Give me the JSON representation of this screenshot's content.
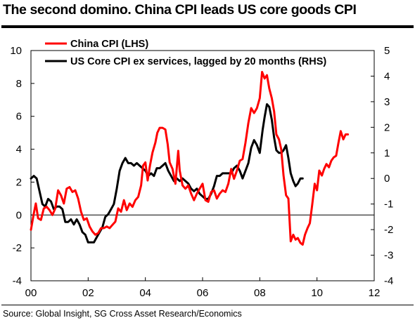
{
  "header": {
    "title": "The second domino.  China CPI leads US core goods CPI"
  },
  "footer": {
    "source": "Source: Global Insight, SG Cross Asset Research/Economics"
  },
  "chart_data": {
    "type": "line",
    "title": "The second domino.  China CPI leads US core goods CPI",
    "xlabel": "",
    "ylabel": "",
    "xlim": [
      2000,
      2012
    ],
    "ylim_left": [
      -4,
      10
    ],
    "ylim_right": [
      -4,
      5
    ],
    "x_tick_labels": [
      "00",
      "02",
      "04",
      "06",
      "08",
      "10",
      "12"
    ],
    "x_tick_values": [
      2000,
      2002,
      2004,
      2006,
      2008,
      2010,
      2012
    ],
    "y_left_ticks": [
      -4,
      -2,
      0,
      2,
      4,
      6,
      8,
      10
    ],
    "y_right_ticks": [
      -4,
      -3,
      -2,
      -1,
      0,
      1,
      2,
      3,
      4,
      5
    ],
    "grid": false,
    "legend": "top-left",
    "series": [
      {
        "name": "China CPI (LHS)",
        "color": "#ff0000",
        "axis": "left",
        "points": [
          [
            2000.0,
            -0.9
          ],
          [
            2000.1,
            0.1
          ],
          [
            2000.17,
            0.7
          ],
          [
            2000.25,
            -0.2
          ],
          [
            2000.35,
            -0.3
          ],
          [
            2000.45,
            0.4
          ],
          [
            2000.55,
            0.5
          ],
          [
            2000.65,
            0.3
          ],
          [
            2000.75,
            0.0
          ],
          [
            2000.85,
            0.4
          ],
          [
            2000.95,
            1.5
          ],
          [
            2001.05,
            1.2
          ],
          [
            2001.15,
            0.7
          ],
          [
            2001.25,
            1.6
          ],
          [
            2001.35,
            1.7
          ],
          [
            2001.45,
            1.4
          ],
          [
            2001.55,
            1.5
          ],
          [
            2001.65,
            1.0
          ],
          [
            2001.75,
            0.2
          ],
          [
            2001.85,
            -0.3
          ],
          [
            2001.95,
            -0.2
          ],
          [
            2002.05,
            -0.7
          ],
          [
            2002.15,
            -1.0
          ],
          [
            2002.25,
            -1.2
          ],
          [
            2002.35,
            -1.1
          ],
          [
            2002.45,
            -0.8
          ],
          [
            2002.55,
            -0.8
          ],
          [
            2002.65,
            -0.7
          ],
          [
            2002.75,
            -0.8
          ],
          [
            2002.85,
            -0.6
          ],
          [
            2002.95,
            -0.4
          ],
          [
            2003.05,
            0.4
          ],
          [
            2003.15,
            0.2
          ],
          [
            2003.25,
            0.9
          ],
          [
            2003.35,
            0.3
          ],
          [
            2003.45,
            0.7
          ],
          [
            2003.55,
            0.5
          ],
          [
            2003.65,
            0.9
          ],
          [
            2003.75,
            1.1
          ],
          [
            2003.85,
            1.8
          ],
          [
            2003.92,
            3.0
          ],
          [
            2004.0,
            3.2
          ],
          [
            2004.08,
            2.1
          ],
          [
            2004.16,
            3.0
          ],
          [
            2004.25,
            3.8
          ],
          [
            2004.35,
            4.4
          ],
          [
            2004.42,
            5.0
          ],
          [
            2004.5,
            5.3
          ],
          [
            2004.6,
            5.3
          ],
          [
            2004.7,
            5.2
          ],
          [
            2004.78,
            4.3
          ],
          [
            2004.85,
            3.2
          ],
          [
            2004.95,
            2.8
          ],
          [
            2005.05,
            1.9
          ],
          [
            2005.15,
            3.9
          ],
          [
            2005.2,
            2.7
          ],
          [
            2005.3,
            1.8
          ],
          [
            2005.4,
            1.6
          ],
          [
            2005.5,
            1.8
          ],
          [
            2005.6,
            1.3
          ],
          [
            2005.7,
            0.9
          ],
          [
            2005.8,
            1.3
          ],
          [
            2005.9,
            1.6
          ],
          [
            2006.0,
            1.9
          ],
          [
            2006.1,
            0.9
          ],
          [
            2006.2,
            0.8
          ],
          [
            2006.3,
            1.4
          ],
          [
            2006.4,
            1.5
          ],
          [
            2006.5,
            1.0
          ],
          [
            2006.6,
            1.3
          ],
          [
            2006.7,
            1.5
          ],
          [
            2006.8,
            1.4
          ],
          [
            2006.9,
            1.9
          ],
          [
            2007.0,
            2.8
          ],
          [
            2007.1,
            2.2
          ],
          [
            2007.2,
            2.7
          ],
          [
            2007.3,
            3.3
          ],
          [
            2007.4,
            3.4
          ],
          [
            2007.5,
            4.4
          ],
          [
            2007.6,
            5.6
          ],
          [
            2007.7,
            6.5
          ],
          [
            2007.8,
            6.2
          ],
          [
            2007.9,
            6.5
          ],
          [
            2008.0,
            7.1
          ],
          [
            2008.08,
            8.7
          ],
          [
            2008.17,
            8.3
          ],
          [
            2008.25,
            8.5
          ],
          [
            2008.33,
            7.7
          ],
          [
            2008.42,
            7.1
          ],
          [
            2008.5,
            6.3
          ],
          [
            2008.58,
            4.9
          ],
          [
            2008.67,
            4.6
          ],
          [
            2008.75,
            4.0
          ],
          [
            2008.83,
            2.4
          ],
          [
            2008.92,
            1.2
          ],
          [
            2009.0,
            1.0
          ],
          [
            2009.08,
            -1.6
          ],
          [
            2009.17,
            -1.2
          ],
          [
            2009.25,
            -1.5
          ],
          [
            2009.33,
            -1.4
          ],
          [
            2009.42,
            -1.7
          ],
          [
            2009.5,
            -1.8
          ],
          [
            2009.58,
            -1.2
          ],
          [
            2009.67,
            -0.8
          ],
          [
            2009.75,
            -0.5
          ],
          [
            2009.83,
            0.6
          ],
          [
            2009.92,
            1.9
          ],
          [
            2010.0,
            1.5
          ],
          [
            2010.08,
            2.7
          ],
          [
            2010.17,
            2.4
          ],
          [
            2010.25,
            2.8
          ],
          [
            2010.33,
            3.1
          ],
          [
            2010.42,
            2.9
          ],
          [
            2010.5,
            3.3
          ],
          [
            2010.58,
            3.5
          ],
          [
            2010.67,
            3.6
          ],
          [
            2010.75,
            4.4
          ],
          [
            2010.83,
            5.1
          ],
          [
            2010.92,
            4.6
          ],
          [
            2011.0,
            4.9
          ],
          [
            2011.08,
            4.9
          ]
        ]
      },
      {
        "name": "US Core CPI ex services,  lagged by 20 months (RHS)",
        "color": "#000000",
        "axis": "right",
        "points": [
          [
            2000.0,
            0.0
          ],
          [
            2000.1,
            0.1
          ],
          [
            2000.2,
            0.0
          ],
          [
            2000.3,
            -0.5
          ],
          [
            2000.4,
            -1.0
          ],
          [
            2000.5,
            -1.1
          ],
          [
            2000.6,
            -0.8
          ],
          [
            2000.7,
            -0.9
          ],
          [
            2000.8,
            -1.2
          ],
          [
            2000.9,
            -1.1
          ],
          [
            2001.0,
            -1.1
          ],
          [
            2001.1,
            -1.2
          ],
          [
            2001.2,
            -1.7
          ],
          [
            2001.3,
            -1.7
          ],
          [
            2001.4,
            -1.6
          ],
          [
            2001.5,
            -1.8
          ],
          [
            2001.6,
            -1.6
          ],
          [
            2001.7,
            -1.8
          ],
          [
            2001.8,
            -2.1
          ],
          [
            2001.9,
            -2.2
          ],
          [
            2002.0,
            -2.5
          ],
          [
            2002.1,
            -2.5
          ],
          [
            2002.2,
            -2.5
          ],
          [
            2002.3,
            -2.3
          ],
          [
            2002.4,
            -2.1
          ],
          [
            2002.5,
            -1.9
          ],
          [
            2002.6,
            -1.5
          ],
          [
            2002.7,
            -1.4
          ],
          [
            2002.8,
            -1.2
          ],
          [
            2002.9,
            -1.0
          ],
          [
            2003.0,
            -0.4
          ],
          [
            2003.1,
            0.3
          ],
          [
            2003.2,
            0.6
          ],
          [
            2003.3,
            0.8
          ],
          [
            2003.4,
            0.6
          ],
          [
            2003.5,
            0.6
          ],
          [
            2003.6,
            0.5
          ],
          [
            2003.7,
            0.6
          ],
          [
            2003.8,
            0.5
          ],
          [
            2003.9,
            0.4
          ],
          [
            2004.0,
            0.3
          ],
          [
            2004.1,
            0.1
          ],
          [
            2004.2,
            0.2
          ],
          [
            2004.3,
            0.1
          ],
          [
            2004.4,
            0.4
          ],
          [
            2004.5,
            0.4
          ],
          [
            2004.6,
            0.5
          ],
          [
            2004.7,
            0.6
          ],
          [
            2004.8,
            0.3
          ],
          [
            2004.9,
            0.1
          ],
          [
            2005.0,
            -0.1
          ],
          [
            2005.1,
            0.0
          ],
          [
            2005.2,
            -0.1
          ],
          [
            2005.3,
            0.0
          ],
          [
            2005.4,
            -0.1
          ],
          [
            2005.5,
            -0.2
          ],
          [
            2005.6,
            -0.4
          ],
          [
            2005.7,
            -0.5
          ],
          [
            2005.8,
            -0.4
          ],
          [
            2005.9,
            -0.6
          ],
          [
            2006.0,
            -0.7
          ],
          [
            2006.1,
            -0.8
          ],
          [
            2006.2,
            -0.8
          ],
          [
            2006.3,
            -0.6
          ],
          [
            2006.4,
            -0.3
          ],
          [
            2006.5,
            0.1
          ],
          [
            2006.6,
            0.1
          ],
          [
            2006.7,
            0.2
          ],
          [
            2006.8,
            0.2
          ],
          [
            2006.9,
            0.2
          ],
          [
            2007.0,
            0.2
          ],
          [
            2007.1,
            0.4
          ],
          [
            2007.2,
            0.5
          ],
          [
            2007.3,
            0.3
          ],
          [
            2007.4,
            0.0
          ],
          [
            2007.5,
            0.3
          ],
          [
            2007.6,
            0.6
          ],
          [
            2007.7,
            1.2
          ],
          [
            2007.8,
            1.5
          ],
          [
            2007.9,
            1.3
          ],
          [
            2008.0,
            1.0
          ],
          [
            2008.1,
            1.9
          ],
          [
            2008.17,
            2.4
          ],
          [
            2008.25,
            2.9
          ],
          [
            2008.33,
            2.8
          ],
          [
            2008.42,
            2.3
          ],
          [
            2008.5,
            1.6
          ],
          [
            2008.58,
            1.1
          ],
          [
            2008.67,
            1.0
          ],
          [
            2008.75,
            1.0
          ],
          [
            2008.83,
            1.1
          ],
          [
            2008.92,
            1.3
          ],
          [
            2009.0,
            0.8
          ],
          [
            2009.08,
            0.2
          ],
          [
            2009.17,
            -0.1
          ],
          [
            2009.25,
            -0.3
          ],
          [
            2009.33,
            -0.2
          ],
          [
            2009.42,
            0.0
          ],
          [
            2009.5,
            0.0
          ]
        ]
      }
    ]
  }
}
